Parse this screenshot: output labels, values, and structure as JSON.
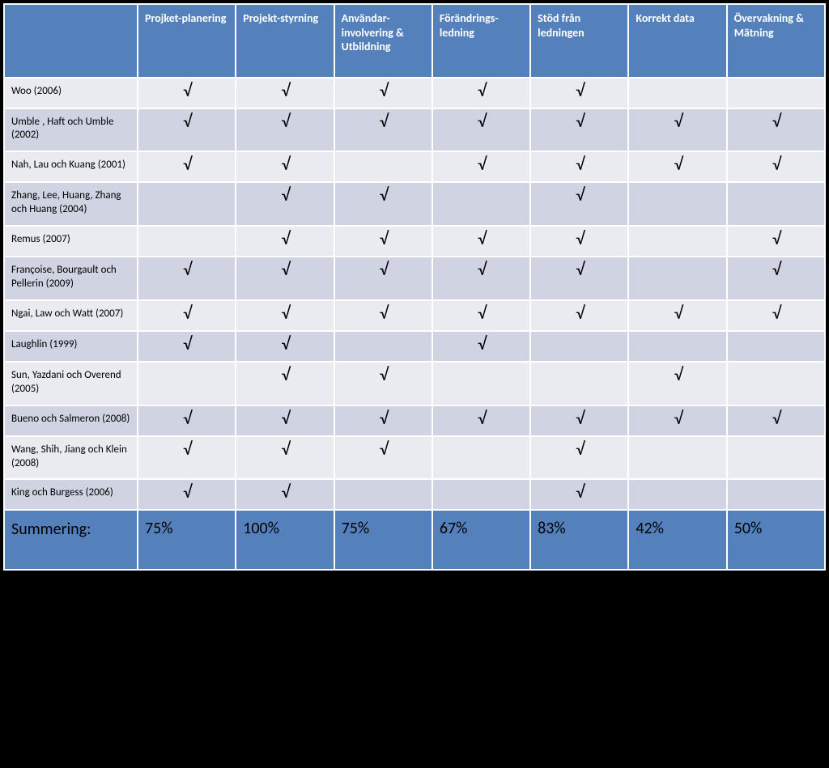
{
  "columns": [
    "Projket-planering",
    "Projekt-styrning",
    "Användar-involvering & Utbildning",
    "Förändrings-ledning",
    "Stöd från ledningen",
    "Korrekt data",
    "Övervakning & Mätning"
  ],
  "checkmark": "√",
  "rows": [
    {
      "label": "Woo (2006)",
      "marks": [
        true,
        true,
        true,
        true,
        true,
        false,
        false
      ]
    },
    {
      "label": "Umble , Haft och Umble (2002)",
      "marks": [
        true,
        true,
        true,
        true,
        true,
        true,
        true
      ]
    },
    {
      "label": "Nah, Lau och Kuang (2001)",
      "marks": [
        true,
        true,
        false,
        true,
        true,
        true,
        true
      ]
    },
    {
      "label": "Zhang, Lee, Huang, Zhang och Huang (2004)",
      "marks": [
        false,
        true,
        true,
        false,
        true,
        false,
        false
      ]
    },
    {
      "label": "Remus (2007)",
      "marks": [
        false,
        true,
        true,
        true,
        true,
        false,
        true
      ]
    },
    {
      "label": "Françoise, Bourgault och Pellerin (2009)",
      "marks": [
        true,
        true,
        true,
        true,
        true,
        false,
        true
      ]
    },
    {
      "label": "Ngai, Law och Watt (2007)",
      "marks": [
        true,
        true,
        true,
        true,
        true,
        true,
        true
      ]
    },
    {
      "label": "Laughlin (1999)",
      "marks": [
        true,
        true,
        false,
        true,
        false,
        false,
        false
      ]
    },
    {
      "label": "Sun, Yazdani och Overend (2005)",
      "marks": [
        false,
        true,
        true,
        false,
        false,
        true,
        false
      ]
    },
    {
      "label": "Bueno och Salmeron (2008)",
      "marks": [
        true,
        true,
        true,
        true,
        true,
        true,
        true
      ]
    },
    {
      "label": "Wang, Shih, Jiang och Klein (2008)",
      "marks": [
        true,
        true,
        true,
        false,
        true,
        false,
        false
      ]
    },
    {
      "label": "King och Burgess (2006)",
      "marks": [
        true,
        true,
        false,
        false,
        true,
        false,
        false
      ]
    }
  ],
  "summary": {
    "label": "Summering:",
    "values": [
      "75%",
      "100%",
      "75%",
      "67%",
      "83%",
      "42%",
      "50%"
    ]
  },
  "colors": {
    "header_bg": "#5480bc",
    "row_odd": "#e9ebf1",
    "row_even": "#d0d4e2",
    "border": "#ffffff",
    "header_text": "#ffffff",
    "body_text": "#000000"
  },
  "typography": {
    "header_fontsize": 14,
    "body_fontsize": 13,
    "check_fontsize": 22,
    "summary_fontsize": 20,
    "font_family": "Calibri"
  },
  "table_type": "matrix"
}
